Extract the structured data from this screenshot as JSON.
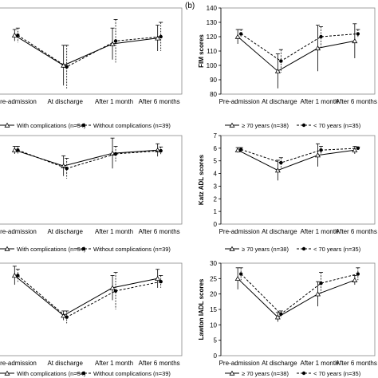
{
  "figure": {
    "panel_label": "(b)"
  },
  "legends": {
    "left": {
      "s1": "With complications (n=34)",
      "s2": "Without complications (n=39)"
    },
    "right": {
      "s1": "≥ 70 years (n=38)",
      "s2": "< 70 years (n=35)"
    }
  },
  "chart_data": [
    {
      "type": "line",
      "panel": "left-top",
      "categories": [
        "Pre-admission",
        "At discharge",
        "After 1 month",
        "After 6 months"
      ],
      "series": [
        {
          "name": "With complications (n=34)",
          "style": "solid",
          "values": [
            121,
            100,
            115,
            119
          ],
          "err": [
            4,
            14,
            11,
            9
          ]
        },
        {
          "name": "Without complications (n=39)",
          "style": "dashed",
          "values": [
            121,
            99,
            117,
            120
          ],
          "err": [
            5,
            15,
            15,
            10
          ]
        }
      ]
    },
    {
      "type": "line",
      "panel": "right-top",
      "ylabel": "FIM scores",
      "ylim": [
        0,
        140
      ],
      "yticks": [
        0,
        10,
        20,
        30,
        40,
        50,
        60,
        70,
        80,
        90,
        100,
        110,
        120,
        130,
        140
      ],
      "categories": [
        "Pre-admission",
        "At discharge",
        "After 1 month",
        "After 6 months"
      ],
      "series": [
        {
          "name": "≥ 70 years (n=38)",
          "style": "solid",
          "values": [
            120,
            96,
            112,
            117
          ],
          "err": [
            5,
            12,
            16,
            12
          ]
        },
        {
          "name": "< 70 years (n=35)",
          "style": "dashed",
          "values": [
            122,
            103,
            120,
            122
          ],
          "err": [
            3,
            8,
            7,
            3
          ]
        }
      ]
    },
    {
      "type": "line",
      "panel": "left-middle",
      "categories": [
        "Pre-admission",
        "At discharge",
        "After 1 month",
        "After 6 months"
      ],
      "series": [
        {
          "name": "With complications (n=34)",
          "style": "solid",
          "values": [
            5.85,
            4.6,
            5.6,
            5.85
          ],
          "err": [
            0.3,
            0.8,
            1.2,
            0.5
          ]
        },
        {
          "name": "Without complications (n=39)",
          "style": "dashed",
          "values": [
            5.85,
            4.4,
            5.55,
            5.8
          ],
          "err": [
            0.3,
            0.8,
            0.6,
            0.3
          ]
        }
      ]
    },
    {
      "type": "line",
      "panel": "right-middle",
      "ylabel": "Katz ADL scores",
      "ylim": [
        0,
        7
      ],
      "yticks": [
        0,
        1,
        2,
        3,
        4,
        5,
        6,
        7
      ],
      "categories": [
        "Pre-admission",
        "At discharge",
        "After 1 month",
        "After 6 months"
      ],
      "series": [
        {
          "name": "≥ 70 years (n=38)",
          "style": "solid",
          "values": [
            5.85,
            4.25,
            5.45,
            5.85
          ],
          "err": [
            0.2,
            0.8,
            0.9,
            0.3
          ]
        },
        {
          "name": "< 70 years (n=35)",
          "style": "dashed",
          "values": [
            5.9,
            4.85,
            5.85,
            6.0
          ],
          "err": [
            0.15,
            0.4,
            0.3,
            0.1
          ]
        }
      ]
    },
    {
      "type": "line",
      "panel": "left-bottom",
      "categories": [
        "Pre-admission",
        "At discharge",
        "After 1 month",
        "After 6 months"
      ],
      "series": [
        {
          "name": "With complications (n=34)",
          "style": "solid",
          "values": [
            26,
            13,
            22,
            25
          ],
          "err": [
            3,
            1.5,
            4,
            3
          ]
        },
        {
          "name": "Without complications (n=39)",
          "style": "dashed",
          "values": [
            26,
            12.5,
            21,
            24
          ],
          "err": [
            2,
            2,
            6,
            2
          ]
        }
      ]
    },
    {
      "type": "line",
      "panel": "right-bottom",
      "ylabel": "Lawton IADL scores",
      "ylim": [
        0,
        30
      ],
      "yticks": [
        0,
        5,
        10,
        15,
        20,
        25,
        30
      ],
      "categories": [
        "Pre-admission",
        "At discharge",
        "After 1 month",
        "After 6 months"
      ],
      "series": [
        {
          "name": "≥ 70 years (n=38)",
          "style": "solid",
          "values": [
            25,
            12.5,
            20,
            24.5
          ],
          "err": [
            3.5,
            1.5,
            4,
            1.5
          ]
        },
        {
          "name": "< 70 years (n=35)",
          "style": "dashed",
          "values": [
            26.5,
            13.5,
            23.5,
            26.5
          ],
          "err": [
            2,
            1,
            3.5,
            2
          ]
        }
      ]
    }
  ]
}
